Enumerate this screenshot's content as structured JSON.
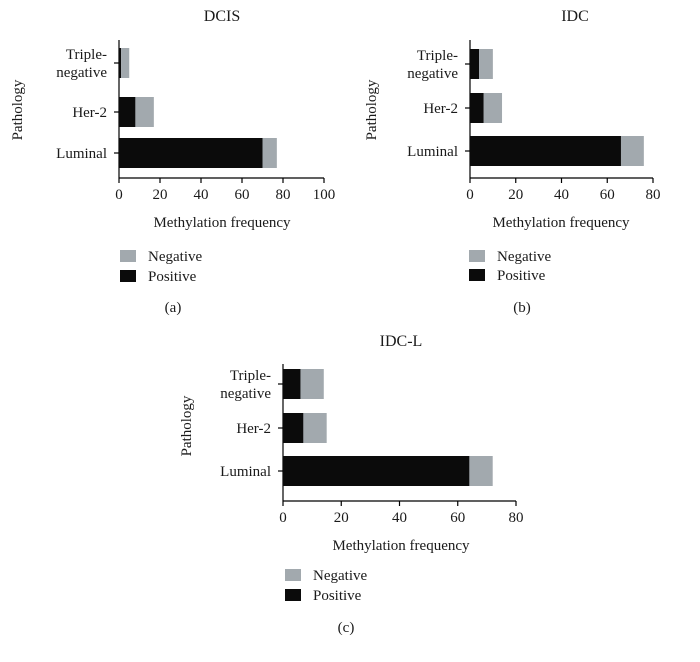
{
  "chart_data": [
    {
      "type": "bar",
      "orientation": "horizontal",
      "stacked": true,
      "title": "DCIS",
      "panel_label": "(a)",
      "categories": [
        [
          "Triple-",
          "negative"
        ],
        [
          "Her-2"
        ],
        [
          "Luminal"
        ]
      ],
      "series": [
        {
          "name": "Positive",
          "values": [
            1,
            8,
            70
          ]
        },
        {
          "name": "Negative",
          "values": [
            4,
            9,
            7
          ]
        }
      ],
      "xlabel": "Methylation frequency",
      "ylabel": "Pathology",
      "xlim": [
        0,
        100
      ],
      "xticks": [
        0,
        20,
        40,
        60,
        80,
        100
      ],
      "legend": [
        {
          "name": "Negative",
          "color": "#a2a9ae"
        },
        {
          "name": "Positive",
          "color": "#0b0b0b"
        }
      ],
      "legend_placement": "bottom-left",
      "grid": false
    },
    {
      "type": "bar",
      "orientation": "horizontal",
      "stacked": true,
      "title": "IDC",
      "panel_label": "(b)",
      "categories": [
        [
          "Triple-",
          "negative"
        ],
        [
          "Her-2"
        ],
        [
          "Luminal"
        ]
      ],
      "series": [
        {
          "name": "Positive",
          "values": [
            4,
            6,
            66
          ]
        },
        {
          "name": "Negative",
          "values": [
            6,
            8,
            10
          ]
        }
      ],
      "xlabel": "Methylation frequency",
      "ylabel": "Pathology",
      "xlim": [
        0,
        80
      ],
      "xticks": [
        0,
        20,
        40,
        60,
        80
      ],
      "legend": [
        {
          "name": "Negative",
          "color": "#a2a9ae"
        },
        {
          "name": "Positive",
          "color": "#0b0b0b"
        }
      ],
      "legend_placement": "bottom-left",
      "grid": false
    },
    {
      "type": "bar",
      "orientation": "horizontal",
      "stacked": true,
      "title": "IDC-L",
      "panel_label": "(c)",
      "categories": [
        [
          "Triple-",
          "negative"
        ],
        [
          "Her-2"
        ],
        [
          "Luminal"
        ]
      ],
      "series": [
        {
          "name": "Positive",
          "values": [
            6,
            7,
            64
          ]
        },
        {
          "name": "Negative",
          "values": [
            8,
            8,
            8
          ]
        }
      ],
      "xlabel": "Methylation frequency",
      "ylabel": "Pathology",
      "xlim": [
        0,
        80
      ],
      "xticks": [
        0,
        20,
        40,
        60,
        80
      ],
      "legend": [
        {
          "name": "Negative",
          "color": "#a2a9ae"
        },
        {
          "name": "Positive",
          "color": "#0b0b0b"
        }
      ],
      "legend_placement": "bottom-left",
      "grid": false
    }
  ],
  "colors": {
    "positive": "#0b0b0b",
    "negative": "#a2a9ae"
  }
}
